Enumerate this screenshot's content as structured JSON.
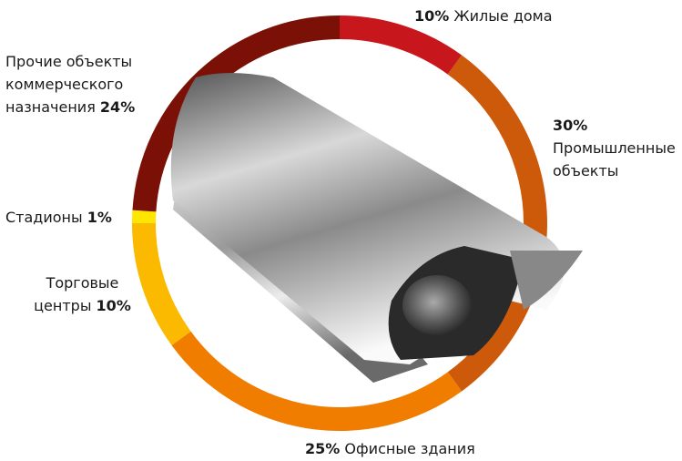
{
  "chart_data": {
    "type": "donut",
    "categories": [
      "Жилые дома",
      "Промышленные объекты",
      "Офисные здания",
      "Торговые центры",
      "Стадионы",
      "Прочие объекты коммерческого назначения"
    ],
    "values": [
      10,
      30,
      25,
      10,
      1,
      24
    ],
    "value_labels": [
      "10%",
      "30%",
      "25%",
      "10%",
      "1%",
      "24%"
    ],
    "colors": [
      "#c8161d",
      "#cc5a0a",
      "#f07d00",
      "#fbb900",
      "#ffe600",
      "#7b1106"
    ]
  }
}
